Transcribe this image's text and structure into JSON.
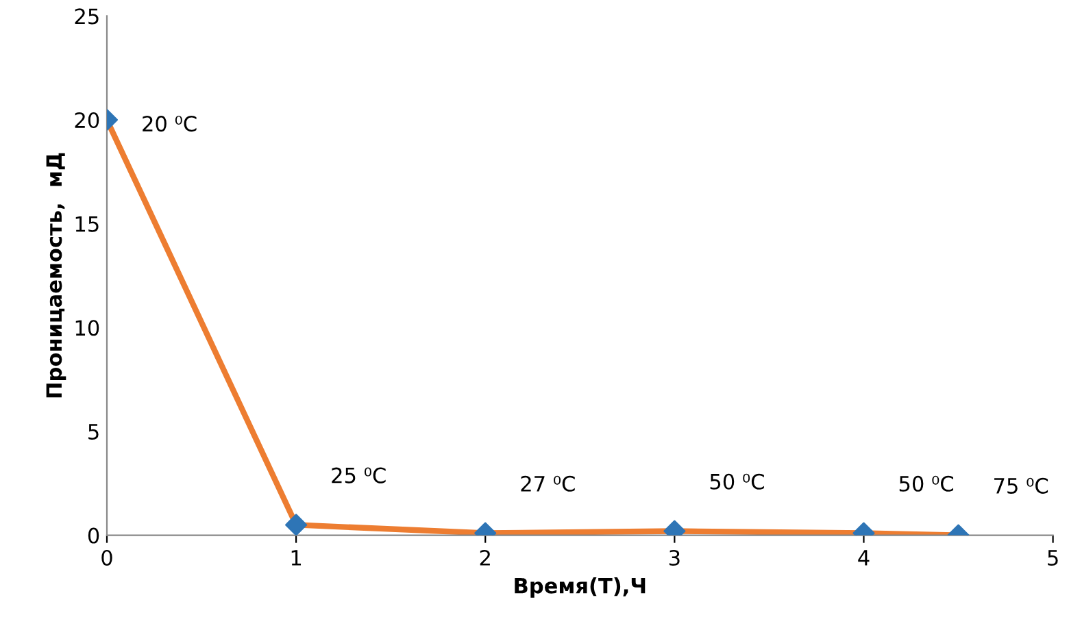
{
  "chart_data": {
    "type": "line",
    "xlabel": "Время(Т),Ч",
    "ylabel": "Проницаемость,  мД",
    "x": [
      0,
      1,
      2,
      3,
      4,
      4.5
    ],
    "series": [
      {
        "color": "#ed7d31",
        "colors": [
          "#2e75b6",
          "#2e75b6",
          "#2e75b6",
          "#2e75b6",
          "#2e75b6",
          "#2e75b6"
        ],
        "values": [
          20,
          0.5,
          0.1,
          0.2,
          0.1,
          0
        ]
      }
    ],
    "xlim": [
      0,
      5
    ],
    "xticks": [
      0,
      1,
      2,
      3,
      4,
      5
    ],
    "ylim": [
      0,
      25
    ],
    "yticks": [
      0,
      5,
      10,
      15,
      20,
      25
    ],
    "grid": false,
    "marker": "diamond",
    "line_style": "solid",
    "annotations": [
      {
        "text": "20 ⁰C",
        "x": 0,
        "y": 20
      },
      {
        "text": "25 ⁰C",
        "x": 1,
        "y": 0.5
      },
      {
        "text": "27 ⁰C",
        "x": 2,
        "y": 0.1
      },
      {
        "text": "50 ⁰C",
        "x": 3,
        "y": 0.2
      },
      {
        "text": "50 ⁰C",
        "x": 4,
        "y": 0.1
      },
      {
        "text": "75 ⁰C",
        "x": 4.5,
        "y": 0
      }
    ]
  }
}
